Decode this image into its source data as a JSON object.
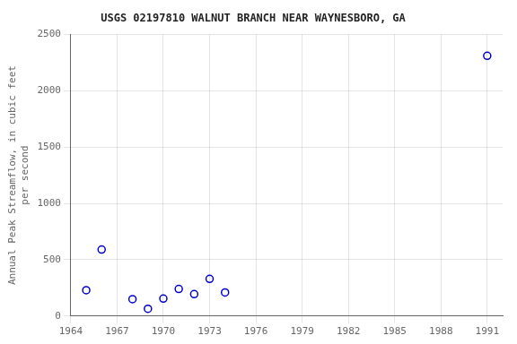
{
  "chart_data": {
    "type": "scatter",
    "title": "USGS 02197810 WALNUT BRANCH NEAR WAYNESBORO, GA",
    "ylabel": [
      "Annual Peak Streamflow, in cubic feet",
      "per second"
    ],
    "x": [
      1965,
      1966,
      1968,
      1969,
      1970,
      1971,
      1972,
      1973,
      1974,
      1991
    ],
    "values": [
      230,
      590,
      150,
      65,
      155,
      240,
      195,
      330,
      210,
      2310
    ],
    "color": "#0000cc",
    "marker": "circle",
    "xlim": [
      1964,
      1992
    ],
    "ylim": [
      0,
      2500
    ],
    "xticks": [
      1964,
      1967,
      1970,
      1973,
      1976,
      1979,
      1982,
      1985,
      1988,
      1991
    ],
    "yticks": [
      0,
      500,
      1000,
      1500,
      2000,
      2500
    ],
    "grid": true
  }
}
